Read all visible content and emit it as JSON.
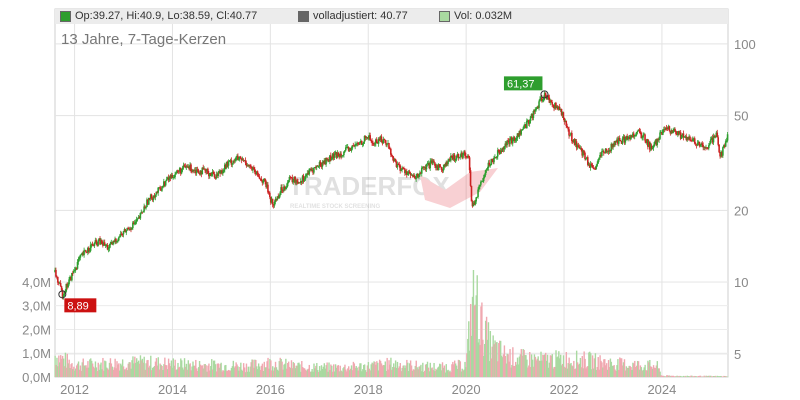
{
  "legend": {
    "ohlc_label": "Op:39.27, Hi:40.9, Lo:38.59, Cl:40.77",
    "adjusted_label": "volladjustiert: 40.77",
    "volume_label": "Vol: 0.032M",
    "ohlc_color": "#2e9e2e",
    "adjusted_color": "#666666",
    "volume_color": "#a9d9a0"
  },
  "watermark": {
    "brand": "TRADERFOX",
    "tagline": "REALTIME STOCK SCREENING"
  },
  "chart_data": {
    "type": "candlestick",
    "title": "13 Jahre, 7-Tage-Kerzen",
    "price_axis": {
      "scale": "log",
      "ticks": [
        5,
        10,
        20,
        50,
        100
      ],
      "range": [
        4,
        140
      ]
    },
    "volume_axis": {
      "ticks": [
        "0,0M",
        "1,0M",
        "2,0M",
        "3,0M",
        "4,0M"
      ],
      "range": [
        0,
        4.5
      ]
    },
    "x_ticks": [
      "2012",
      "2014",
      "2016",
      "2018",
      "2020",
      "2022",
      "2024"
    ],
    "x_range": [
      2011.6,
      2025.35
    ],
    "grid": true,
    "up_color": "#2e9e2e",
    "down_color": "#cc2222",
    "volume_up_color": "#a9d9a0",
    "volume_down_color": "#f0a8b0",
    "annotations": [
      {
        "label": "61,37",
        "x": 2021.6,
        "value": 61.37,
        "color": "#2e9e2e"
      },
      {
        "label": "8,89",
        "x": 2011.75,
        "value": 8.89,
        "color": "#cc1111"
      }
    ],
    "price_series": [
      [
        2011.6,
        11.0
      ],
      [
        2011.75,
        8.89
      ],
      [
        2011.9,
        10.2
      ],
      [
        2012.1,
        12.5
      ],
      [
        2012.3,
        14.0
      ],
      [
        2012.5,
        14.8
      ],
      [
        2012.7,
        13.9
      ],
      [
        2012.9,
        15.5
      ],
      [
        2013.1,
        16.8
      ],
      [
        2013.3,
        18.2
      ],
      [
        2013.5,
        22.0
      ],
      [
        2013.7,
        24.0
      ],
      [
        2013.9,
        27.0
      ],
      [
        2014.1,
        29.0
      ],
      [
        2014.3,
        30.5
      ],
      [
        2014.5,
        29.5
      ],
      [
        2014.7,
        29.0
      ],
      [
        2014.9,
        28.0
      ],
      [
        2015.1,
        31.0
      ],
      [
        2015.3,
        33.0
      ],
      [
        2015.5,
        32.0
      ],
      [
        2015.7,
        28.5
      ],
      [
        2015.9,
        26.0
      ],
      [
        2016.05,
        21.0
      ],
      [
        2016.2,
        24.0
      ],
      [
        2016.4,
        27.0
      ],
      [
        2016.6,
        26.5
      ],
      [
        2016.8,
        29.0
      ],
      [
        2017.0,
        31.0
      ],
      [
        2017.2,
        33.0
      ],
      [
        2017.4,
        34.5
      ],
      [
        2017.6,
        36.0
      ],
      [
        2017.8,
        38.0
      ],
      [
        2018.0,
        41.0
      ],
      [
        2018.1,
        38.0
      ],
      [
        2018.25,
        40.0
      ],
      [
        2018.4,
        38.0
      ],
      [
        2018.5,
        33.0
      ],
      [
        2018.65,
        30.0
      ],
      [
        2018.8,
        29.0
      ],
      [
        2018.95,
        27.0
      ],
      [
        2019.1,
        29.5
      ],
      [
        2019.3,
        31.5
      ],
      [
        2019.5,
        30.0
      ],
      [
        2019.7,
        33.0
      ],
      [
        2019.9,
        34.5
      ],
      [
        2020.05,
        34.0
      ],
      [
        2020.12,
        20.5
      ],
      [
        2020.25,
        24.0
      ],
      [
        2020.4,
        30.0
      ],
      [
        2020.6,
        34.0
      ],
      [
        2020.8,
        38.0
      ],
      [
        2021.0,
        40.0
      ],
      [
        2021.2,
        45.0
      ],
      [
        2021.4,
        52.0
      ],
      [
        2021.6,
        61.37
      ],
      [
        2021.8,
        55.0
      ],
      [
        2021.95,
        52.0
      ],
      [
        2022.1,
        42.0
      ],
      [
        2022.25,
        38.0
      ],
      [
        2022.45,
        33.0
      ],
      [
        2022.6,
        29.0
      ],
      [
        2022.75,
        34.0
      ],
      [
        2022.9,
        36.0
      ],
      [
        2023.1,
        39.0
      ],
      [
        2023.3,
        40.0
      ],
      [
        2023.5,
        43.0
      ],
      [
        2023.65,
        40.0
      ],
      [
        2023.8,
        36.0
      ],
      [
        2023.95,
        41.0
      ],
      [
        2024.1,
        44.0
      ],
      [
        2024.3,
        42.0
      ],
      [
        2024.5,
        40.0
      ],
      [
        2024.7,
        38.5
      ],
      [
        2024.9,
        36.0
      ],
      [
        2025.1,
        42.0
      ],
      [
        2025.2,
        34.0
      ],
      [
        2025.35,
        40.77
      ]
    ],
    "volume_series": [
      [
        2011.6,
        0.9
      ],
      [
        2012.0,
        0.5
      ],
      [
        2012.5,
        0.55
      ],
      [
        2013.0,
        0.6
      ],
      [
        2013.5,
        0.6
      ],
      [
        2014.0,
        0.55
      ],
      [
        2014.5,
        0.5
      ],
      [
        2015.0,
        0.5
      ],
      [
        2015.5,
        0.45
      ],
      [
        2016.0,
        0.6
      ],
      [
        2016.5,
        0.45
      ],
      [
        2017.0,
        0.4
      ],
      [
        2017.5,
        0.4
      ],
      [
        2018.0,
        0.45
      ],
      [
        2018.5,
        0.55
      ],
      [
        2019.0,
        0.45
      ],
      [
        2019.5,
        0.4
      ],
      [
        2020.0,
        0.5
      ],
      [
        2020.15,
        3.7
      ],
      [
        2020.3,
        2.2
      ],
      [
        2020.5,
        1.3
      ],
      [
        2020.8,
        0.9
      ],
      [
        2021.0,
        0.8
      ],
      [
        2021.5,
        0.7
      ],
      [
        2022.0,
        0.75
      ],
      [
        2022.5,
        0.7
      ],
      [
        2023.0,
        0.55
      ],
      [
        2023.5,
        0.5
      ],
      [
        2023.9,
        0.45
      ],
      [
        2024.0,
        0.05
      ],
      [
        2024.5,
        0.04
      ],
      [
        2025.35,
        0.032
      ]
    ]
  }
}
